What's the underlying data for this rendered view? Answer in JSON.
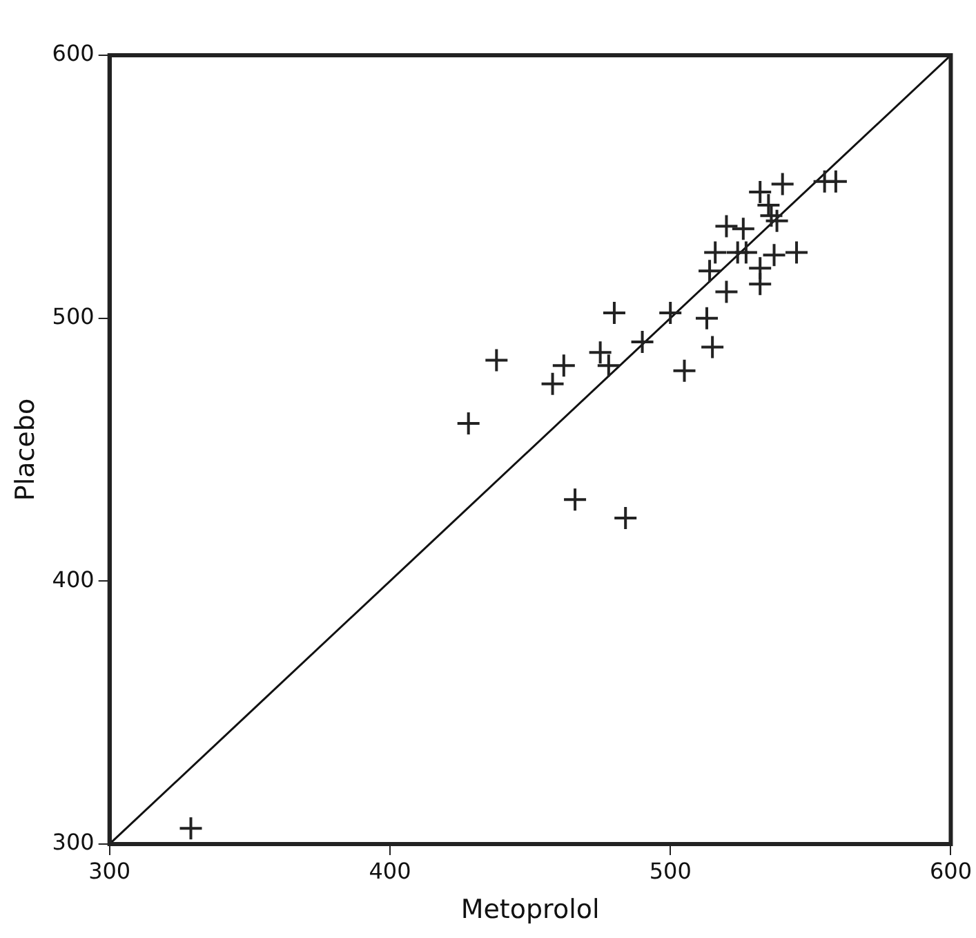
{
  "chart_data": {
    "type": "scatter",
    "xlabel": "Metoprolol",
    "ylabel": "Placebo",
    "xlim": [
      300,
      600
    ],
    "ylim": [
      300,
      600
    ],
    "xticks": [
      300,
      400,
      500,
      600
    ],
    "yticks": [
      300,
      400,
      500,
      600
    ],
    "grid": false,
    "legend": false,
    "marker": "cross",
    "series": [
      {
        "color": "#222222",
        "x": [
          329,
          428,
          438,
          462,
          458,
          480,
          475,
          478,
          490,
          500,
          513,
          515,
          505,
          466,
          484,
          532,
          540,
          535,
          536,
          538,
          520,
          526,
          516,
          524,
          527,
          537,
          545,
          532,
          532,
          520,
          514,
          555,
          559
        ],
        "values": [
          306,
          460,
          484,
          482,
          475,
          502,
          487,
          482,
          491,
          502,
          500,
          489,
          480,
          431,
          424,
          548,
          551,
          543,
          539,
          537,
          535,
          534,
          525,
          525,
          525,
          524,
          525,
          519,
          513,
          510,
          518,
          552,
          552
        ]
      },
      {
        "type": "line",
        "color": "#111111",
        "marker": "none",
        "x": [
          300,
          600
        ],
        "values": [
          300,
          600
        ]
      }
    ]
  }
}
